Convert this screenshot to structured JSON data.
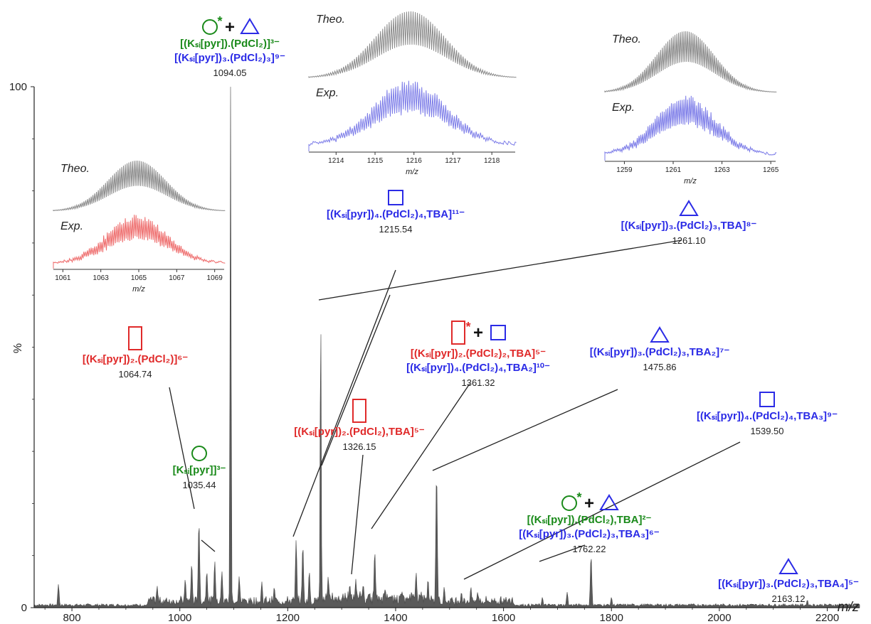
{
  "chart_data": {
    "type": "mass-spectrum",
    "xlabel": "m/z",
    "ylabel": "%",
    "xlim": [
      730,
      2260
    ],
    "ylim": [
      0,
      100
    ],
    "xticks": [
      800,
      1000,
      1200,
      1400,
      1600,
      1800,
      2000,
      2200
    ],
    "yticks": [
      0,
      100
    ],
    "peaks": [
      {
        "x": 775,
        "y": 4.5
      },
      {
        "x": 958,
        "y": 4.2
      },
      {
        "x": 1010,
        "y": 5.5
      },
      {
        "x": 1022,
        "y": 8.5
      },
      {
        "x": 1035.44,
        "y": 16.5
      },
      {
        "x": 1050,
        "y": 7
      },
      {
        "x": 1064.74,
        "y": 9
      },
      {
        "x": 1078,
        "y": 7
      },
      {
        "x": 1094.05,
        "y": 100
      },
      {
        "x": 1110,
        "y": 6
      },
      {
        "x": 1152,
        "y": 5
      },
      {
        "x": 1175,
        "y": 4
      },
      {
        "x": 1215.54,
        "y": 13
      },
      {
        "x": 1228,
        "y": 12
      },
      {
        "x": 1240,
        "y": 7
      },
      {
        "x": 1261.1,
        "y": 58
      },
      {
        "x": 1275,
        "y": 6
      },
      {
        "x": 1315,
        "y": 4.5
      },
      {
        "x": 1326.15,
        "y": 5.5
      },
      {
        "x": 1340,
        "y": 4.5
      },
      {
        "x": 1361.32,
        "y": 10.8
      },
      {
        "x": 1380,
        "y": 3.5
      },
      {
        "x": 1412,
        "y": 3
      },
      {
        "x": 1438,
        "y": 6.8
      },
      {
        "x": 1460,
        "y": 5.5
      },
      {
        "x": 1475.86,
        "y": 26
      },
      {
        "x": 1490,
        "y": 4
      },
      {
        "x": 1522,
        "y": 3
      },
      {
        "x": 1539.5,
        "y": 4
      },
      {
        "x": 1552,
        "y": 3
      },
      {
        "x": 1616,
        "y": 2
      },
      {
        "x": 1672,
        "y": 2
      },
      {
        "x": 1718,
        "y": 3
      },
      {
        "x": 1762.22,
        "y": 10
      },
      {
        "x": 1800,
        "y": 2
      },
      {
        "x": 2163.12,
        "y": 1.5
      }
    ],
    "annotations": [
      {
        "mz": "1094.05",
        "lines": [
          "[(Kₛᵢ[pyr]).(PdCl₂)]³⁻",
          "[(Kₛᵢ[pyr])₃.(PdCl₂)₃]⁹⁻"
        ],
        "colors": [
          "#1a8a1a",
          "#2b2be6"
        ],
        "symbols": [
          "circle*",
          "plus",
          "triangle"
        ]
      },
      {
        "mz": "1215.54",
        "lines": [
          "[(Kₛᵢ[pyr])₄.(PdCl₂)₄,TBA]¹¹⁻"
        ],
        "colors": [
          "#2b2be6"
        ],
        "symbols": [
          "square"
        ]
      },
      {
        "mz": "1261.10",
        "lines": [
          "[(Kₛᵢ[pyr])₃.(PdCl₂)₃,TBA]⁸⁻"
        ],
        "colors": [
          "#2b2be6"
        ],
        "symbols": [
          "triangle"
        ]
      },
      {
        "mz": "1064.74",
        "lines": [
          "[(Kₛᵢ[pyr])₂.(PdCl₂)]⁶⁻"
        ],
        "colors": [
          "#e02a2a"
        ],
        "symbols": [
          "rect"
        ]
      },
      {
        "mz": "1035.44",
        "lines": [
          "[Kₛᵢ[pyr]]³⁻"
        ],
        "colors": [
          "#1a8a1a"
        ],
        "symbols": [
          "circle"
        ]
      },
      {
        "mz": "1361.32",
        "lines": [
          "[(Kₛᵢ[pyr])₂.(PdCl₂)₂,TBA]⁵⁻",
          "[(Kₛᵢ[pyr])₄.(PdCl₂)₄,TBA₂]¹⁰⁻"
        ],
        "colors": [
          "#e02a2a",
          "#2b2be6"
        ],
        "symbols": [
          "rect*",
          "plus",
          "square"
        ]
      },
      {
        "mz": "1326.15",
        "lines": [
          "[(Kₛᵢ[pyr])₂.(PdCl₂),TBA]⁵⁻"
        ],
        "colors": [
          "#e02a2a"
        ],
        "symbols": [
          "rect"
        ]
      },
      {
        "mz": "1475.86",
        "lines": [
          "[(Kₛᵢ[pyr])₃.(PdCl₂)₃,TBA₂]⁷⁻"
        ],
        "colors": [
          "#2b2be6"
        ],
        "symbols": [
          "triangle"
        ]
      },
      {
        "mz": "1539.50",
        "lines": [
          "[(Kₛᵢ[pyr])₄.(PdCl₂)₄,TBA₃]⁹⁻"
        ],
        "colors": [
          "#2b2be6"
        ],
        "symbols": [
          "square"
        ]
      },
      {
        "mz": "1762.22",
        "lines": [
          "[(Kₛᵢ[pyr]).(PdCl₂),TBA]²⁻",
          "[(Kₛᵢ[pyr])₃.(PdCl₂)₃,TBA₃]⁶⁻"
        ],
        "colors": [
          "#1a8a1a",
          "#2b2be6"
        ],
        "symbols": [
          "circle*",
          "plus",
          "triangle"
        ]
      },
      {
        "mz": "2163.12",
        "lines": [
          "[(Kₛᵢ[pyr])₃.(PdCl₂)₃,TBA₄]⁵⁻"
        ],
        "colors": [
          "#2b2be6"
        ],
        "symbols": [
          "triangle"
        ]
      }
    ],
    "insets": [
      {
        "id": "inset-1064",
        "theo_label": "Theo.",
        "exp_label": "Exp.",
        "exp_color": "#ee6b6b",
        "xlabel": "m/z",
        "xlim": [
          1060.5,
          1069.5
        ],
        "ticks": [
          "1061",
          "1063",
          "1065",
          "1067",
          "1069"
        ],
        "center": 1064.9
      },
      {
        "id": "inset-1216",
        "theo_label": "Theo.",
        "exp_label": "Exp.",
        "exp_color": "#7d7de8",
        "xlabel": "m/z",
        "xlim": [
          1213.3,
          1218.6
        ],
        "ticks": [
          "1214",
          "1215",
          "1216",
          "1217",
          "1218"
        ],
        "center": 1215.9
      },
      {
        "id": "inset-1261",
        "theo_label": "Theo.",
        "exp_label": "Exp.",
        "exp_color": "#7d7de8",
        "xlabel": "m/z",
        "xlim": [
          1258.2,
          1265.2
        ],
        "ticks": [
          "1259",
          "1261",
          "1263",
          "1265"
        ],
        "center": 1261.5
      }
    ]
  }
}
